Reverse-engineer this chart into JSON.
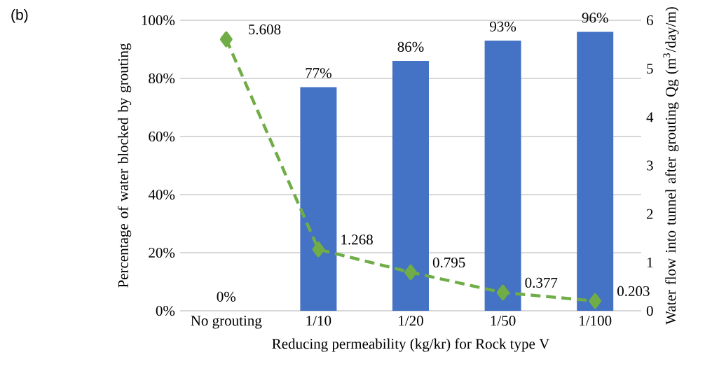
{
  "chart_data": {
    "type": "bar",
    "xlabel": "Reducing permeability  (kg/kr)  for Rock type V",
    "ylabel": "Percentage of water blocked by grouting",
    "y2label": "Water flow into tunnel after grouting Qg (m$^{3}$/day/m)",
    "annotations": [
      "(b)"
    ],
    "categories": [
      "No grouting",
      "1/10",
      "1/20",
      "1/50",
      "1/100"
    ],
    "series": [
      {
        "color": "#4472c4",
        "values": [
          0,
          77,
          86,
          93,
          96
        ],
        "value_labels": [
          "0%",
          "77%",
          "86%",
          "93%",
          "96%"
        ]
      },
      {
        "type": "line",
        "axis": "y2",
        "color": "#70ad47",
        "marker": "diamond",
        "line_style": "dashed",
        "values": [
          5.608,
          1.268,
          0.795,
          0.377,
          0.203
        ],
        "value_labels": [
          "5.608",
          "1.268",
          "0.795",
          "0.377",
          "0.203"
        ]
      }
    ],
    "ylim": [
      0,
      100
    ],
    "yticks": [
      {
        "value": 0,
        "label": "0%"
      },
      {
        "value": 20,
        "label": "20%"
      },
      {
        "value": 40,
        "label": "40%"
      },
      {
        "value": 60,
        "label": "60%"
      },
      {
        "value": 80,
        "label": "80%"
      },
      {
        "value": 100,
        "label": "100%"
      }
    ],
    "y2lim": [
      0,
      6
    ],
    "y2ticks": [
      0,
      1,
      2,
      3,
      4,
      5,
      6
    ],
    "grid": "y"
  }
}
